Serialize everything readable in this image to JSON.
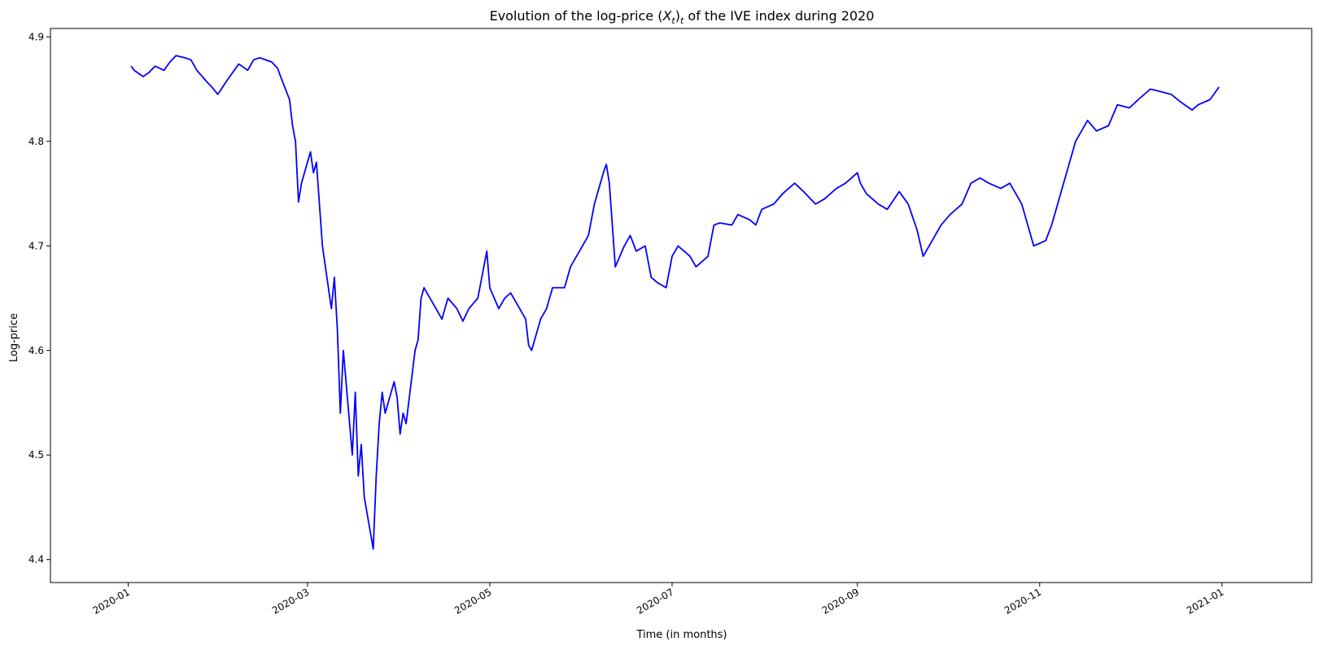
{
  "chart_data": {
    "type": "line",
    "title_prefix": "Evolution of the log-price ",
    "title_math_base": "X",
    "title_math_sub_inner": "t",
    "title_math_sub_outer": "t",
    "title_suffix": " of the IVE index during 2020",
    "xlabel": "Time (in months)",
    "ylabel": "Log-price",
    "xlim": [
      "2019-12-06",
      "2021-01-31"
    ],
    "ylim": [
      4.378,
      4.908
    ],
    "x_ticks": [
      "2020-01",
      "2020-03",
      "2020-05",
      "2020-07",
      "2020-09",
      "2020-11",
      "2021-01"
    ],
    "y_ticks": [
      "4.4",
      "4.5",
      "4.6",
      "4.7",
      "4.8",
      "4.9"
    ],
    "grid": false,
    "series": [
      {
        "color": "#0000ff",
        "x": [
          "2020-01-02",
          "2020-01-03",
          "2020-01-06",
          "2020-01-08",
          "2020-01-10",
          "2020-01-13",
          "2020-01-15",
          "2020-01-17",
          "2020-01-20",
          "2020-01-22",
          "2020-01-24",
          "2020-01-27",
          "2020-01-29",
          "2020-01-31",
          "2020-02-03",
          "2020-02-05",
          "2020-02-07",
          "2020-02-10",
          "2020-02-12",
          "2020-02-14",
          "2020-02-18",
          "2020-02-20",
          "2020-02-21",
          "2020-02-24",
          "2020-02-25",
          "2020-02-26",
          "2020-02-27",
          "2020-02-28",
          "2020-03-02",
          "2020-03-03",
          "2020-03-04",
          "2020-03-05",
          "2020-03-06",
          "2020-03-09",
          "2020-03-10",
          "2020-03-11",
          "2020-03-12",
          "2020-03-13",
          "2020-03-16",
          "2020-03-17",
          "2020-03-18",
          "2020-03-19",
          "2020-03-20",
          "2020-03-23",
          "2020-03-24",
          "2020-03-25",
          "2020-03-26",
          "2020-03-27",
          "2020-03-30",
          "2020-03-31",
          "2020-04-01",
          "2020-04-02",
          "2020-04-03",
          "2020-04-06",
          "2020-04-07",
          "2020-04-08",
          "2020-04-09",
          "2020-04-13",
          "2020-04-15",
          "2020-04-17",
          "2020-04-20",
          "2020-04-22",
          "2020-04-24",
          "2020-04-27",
          "2020-04-29",
          "2020-04-30",
          "2020-05-01",
          "2020-05-04",
          "2020-05-06",
          "2020-05-08",
          "2020-05-11",
          "2020-05-13",
          "2020-05-14",
          "2020-05-15",
          "2020-05-18",
          "2020-05-20",
          "2020-05-22",
          "2020-05-26",
          "2020-05-28",
          "2020-06-01",
          "2020-06-03",
          "2020-06-05",
          "2020-06-08",
          "2020-06-09",
          "2020-06-10",
          "2020-06-11",
          "2020-06-12",
          "2020-06-15",
          "2020-06-17",
          "2020-06-19",
          "2020-06-22",
          "2020-06-24",
          "2020-06-26",
          "2020-06-29",
          "2020-07-01",
          "2020-07-03",
          "2020-07-07",
          "2020-07-09",
          "2020-07-13",
          "2020-07-15",
          "2020-07-17",
          "2020-07-21",
          "2020-07-23",
          "2020-07-27",
          "2020-07-29",
          "2020-07-31",
          "2020-08-04",
          "2020-08-07",
          "2020-08-11",
          "2020-08-14",
          "2020-08-18",
          "2020-08-21",
          "2020-08-25",
          "2020-08-28",
          "2020-09-01",
          "2020-09-02",
          "2020-09-04",
          "2020-09-08",
          "2020-09-11",
          "2020-09-15",
          "2020-09-18",
          "2020-09-21",
          "2020-09-23",
          "2020-09-25",
          "2020-09-29",
          "2020-10-02",
          "2020-10-06",
          "2020-10-09",
          "2020-10-12",
          "2020-10-15",
          "2020-10-19",
          "2020-10-22",
          "2020-10-26",
          "2020-10-28",
          "2020-10-30",
          "2020-11-03",
          "2020-11-05",
          "2020-11-09",
          "2020-11-11",
          "2020-11-13",
          "2020-11-17",
          "2020-11-20",
          "2020-11-24",
          "2020-11-27",
          "2020-12-01",
          "2020-12-04",
          "2020-12-08",
          "2020-12-11",
          "2020-12-15",
          "2020-12-18",
          "2020-12-22",
          "2020-12-24",
          "2020-12-28",
          "2020-12-31"
        ],
        "y": [
          4.872,
          4.868,
          4.862,
          4.866,
          4.872,
          4.868,
          4.876,
          4.882,
          4.88,
          4.878,
          4.868,
          4.858,
          4.852,
          4.845,
          4.858,
          4.866,
          4.874,
          4.868,
          4.878,
          4.88,
          4.876,
          4.87,
          4.862,
          4.84,
          4.815,
          4.8,
          4.742,
          4.76,
          4.79,
          4.77,
          4.78,
          4.74,
          4.7,
          4.64,
          4.67,
          4.62,
          4.54,
          4.6,
          4.5,
          4.56,
          4.48,
          4.51,
          4.46,
          4.41,
          4.48,
          4.53,
          4.56,
          4.54,
          4.57,
          4.555,
          4.52,
          4.54,
          4.53,
          4.6,
          4.61,
          4.65,
          4.66,
          4.64,
          4.63,
          4.65,
          4.64,
          4.628,
          4.64,
          4.65,
          4.68,
          4.695,
          4.66,
          4.64,
          4.65,
          4.655,
          4.64,
          4.63,
          4.605,
          4.6,
          4.63,
          4.64,
          4.66,
          4.66,
          4.68,
          4.7,
          4.71,
          4.74,
          4.77,
          4.778,
          4.76,
          4.72,
          4.68,
          4.7,
          4.71,
          4.695,
          4.7,
          4.67,
          4.665,
          4.66,
          4.69,
          4.7,
          4.69,
          4.68,
          4.69,
          4.72,
          4.722,
          4.72,
          4.73,
          4.725,
          4.72,
          4.735,
          4.74,
          4.75,
          4.76,
          4.752,
          4.74,
          4.745,
          4.755,
          4.76,
          4.77,
          4.76,
          4.75,
          4.74,
          4.735,
          4.752,
          4.74,
          4.715,
          4.69,
          4.7,
          4.72,
          4.73,
          4.74,
          4.76,
          4.765,
          4.76,
          4.755,
          4.76,
          4.74,
          4.72,
          4.7,
          4.705,
          4.72,
          4.76,
          4.78,
          4.8,
          4.82,
          4.81,
          4.815,
          4.835,
          4.832,
          4.84,
          4.85,
          4.848,
          4.845,
          4.838,
          4.83,
          4.835,
          4.84,
          4.852
        ]
      }
    ]
  }
}
